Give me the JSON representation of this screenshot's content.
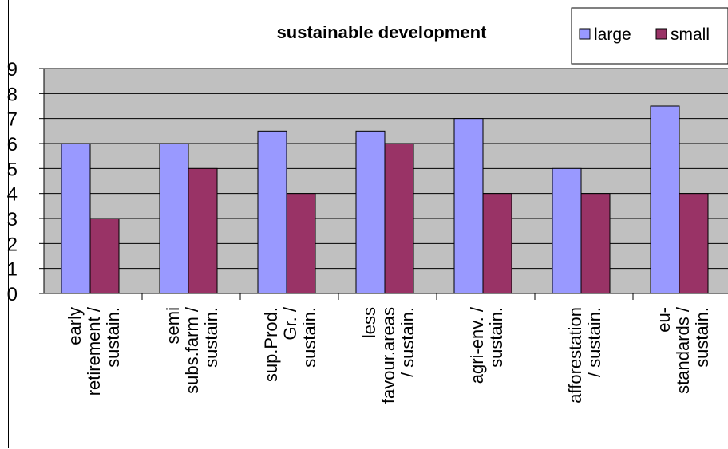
{
  "chart_data": {
    "type": "bar",
    "title": "sustainable development",
    "categories": [
      [
        "early",
        "retirement /",
        "sustain."
      ],
      [
        "semi",
        "subs.farm /",
        "sustain."
      ],
      [
        "sup.Prod.",
        "Gr. /",
        "sustain."
      ],
      [
        "less",
        "favour.areas",
        "/ sustain."
      ],
      [
        "agri-env. /",
        "sustain."
      ],
      [
        "afforestation",
        "/ sustain."
      ],
      [
        "eu-",
        "standards /",
        "sustain."
      ]
    ],
    "series": [
      {
        "name": "large",
        "color": "#9999ff",
        "values": [
          6,
          6,
          6.5,
          6.5,
          7,
          5,
          7.5
        ]
      },
      {
        "name": "small",
        "color": "#993366",
        "values": [
          3,
          5,
          4,
          6,
          4,
          4,
          4
        ]
      }
    ],
    "ylim": [
      0,
      9
    ],
    "yticks": [
      "0",
      "1",
      "2",
      "3",
      "4",
      "5",
      "6",
      "7",
      "8",
      "9"
    ],
    "grid": true,
    "plot_background": "#c0c0c0",
    "legend_position": "top-right"
  }
}
